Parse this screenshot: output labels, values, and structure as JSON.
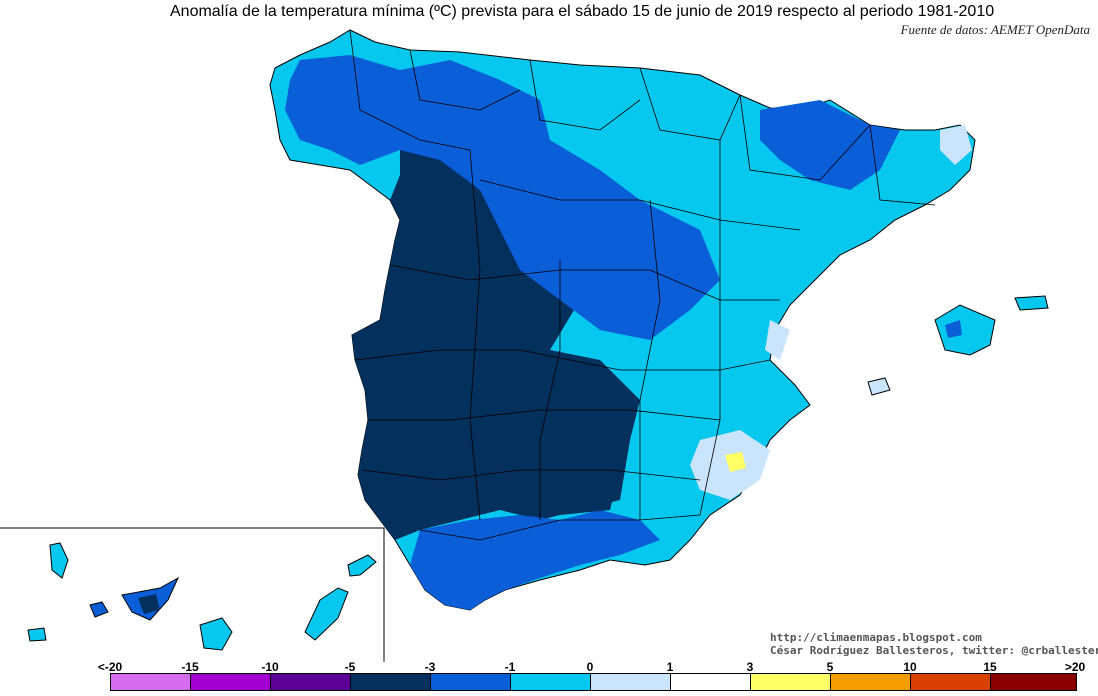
{
  "title": "Anomalía de la temperatura mínima (ºC) prevista para el sábado 15 de junio de 2019 respecto al periodo 1981-2010",
  "source": "Fuente de datos: AEMET OpenData",
  "credits": {
    "line1": "http://climaenmapas.blogspot.com",
    "line2": "César Rodríguez Ballesteros, twitter: @crballesteros"
  },
  "colors": {
    "darkest_blue": "#04305e",
    "blue": "#0a5ed8",
    "cyan": "#06c8ee",
    "light_blue": "#c9e4fb",
    "white": "#ffffff",
    "yellow": "#ffff66"
  },
  "legend": {
    "labels": [
      "<-20",
      "-15",
      "-10",
      "-5",
      "-3",
      "-1",
      "0",
      "1",
      "3",
      "5",
      "10",
      "15",
      ">20"
    ],
    "colors": [
      "#d46df0",
      "#a200d0",
      "#5a0096",
      "#04305e",
      "#0a5ed8",
      "#06c8ee",
      "#c9e4fb",
      "#ffffff",
      "#ffff66",
      "#f59c00",
      "#d84000",
      "#8a0000",
      "#5a2c00"
    ]
  }
}
